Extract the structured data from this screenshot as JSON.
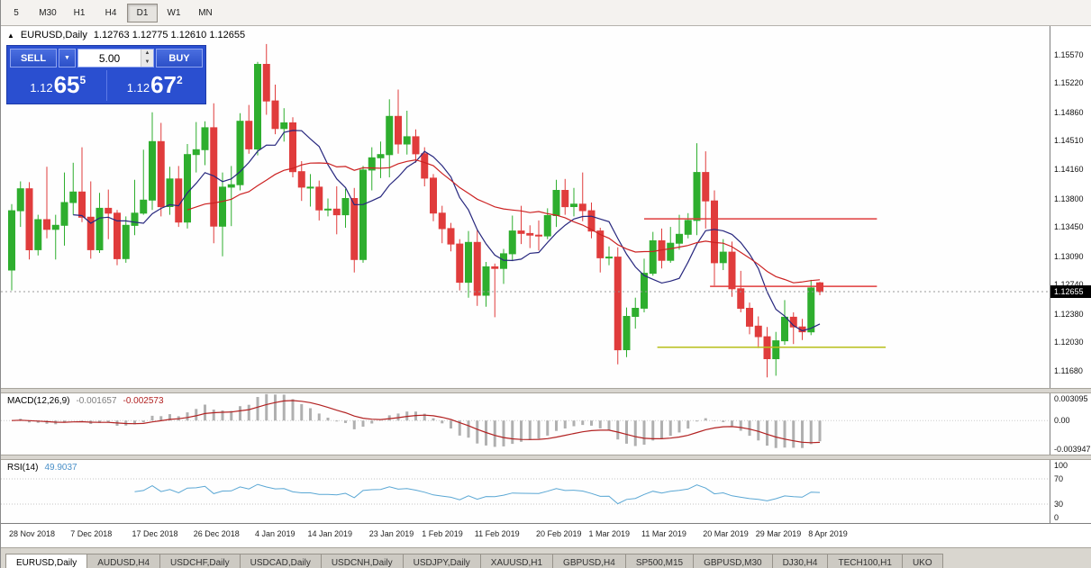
{
  "icons": {
    "collapse": "▲",
    "dropdown": "▼",
    "spin_up": "▲",
    "spin_down": "▼"
  },
  "toolbar": {
    "timeframes": [
      "5",
      "M30",
      "H1",
      "H4",
      "D1",
      "W1",
      "MN"
    ],
    "active": "D1"
  },
  "chart": {
    "symbol_title": "EURUSD,Daily",
    "ohlc_line": "1.12763 1.12775 1.12610 1.12655",
    "current_price_tag": "1.12655",
    "price_axis_labels": [
      "1.15570",
      "1.15220",
      "1.14860",
      "1.14510",
      "1.14160",
      "1.13800",
      "1.13450",
      "1.13090",
      "1.12740",
      "1.12380",
      "1.12030",
      "1.11680"
    ],
    "date_axis_labels": [
      {
        "label": "28 Nov 2018",
        "idx": 0
      },
      {
        "label": "7 Dec 2018",
        "idx": 7
      },
      {
        "label": "17 Dec 2018",
        "idx": 14
      },
      {
        "label": "26 Dec 2018",
        "idx": 21
      },
      {
        "label": "4 Jan 2019",
        "idx": 28
      },
      {
        "label": "14 Jan 2019",
        "idx": 34
      },
      {
        "label": "23 Jan 2019",
        "idx": 41
      },
      {
        "label": "1 Feb 2019",
        "idx": 47
      },
      {
        "label": "11 Feb 2019",
        "idx": 53
      },
      {
        "label": "20 Feb 2019",
        "idx": 60
      },
      {
        "label": "1 Mar 2019",
        "idx": 66
      },
      {
        "label": "11 Mar 2019",
        "idx": 72
      },
      {
        "label": "20 Mar 2019",
        "idx": 79
      },
      {
        "label": "29 Mar 2019",
        "idx": 85
      },
      {
        "label": "8 Apr 2019",
        "idx": 91
      }
    ]
  },
  "trade_panel": {
    "sell_label": "SELL",
    "buy_label": "BUY",
    "lot_value": "5.00",
    "sell_price": {
      "prefix": "1.12",
      "big": "65",
      "sup": "5"
    },
    "buy_price": {
      "prefix": "1.12",
      "big": "67",
      "sup": "2"
    }
  },
  "macd_panel": {
    "label": "MACD(12,26,9)",
    "main_value": "-0.001657",
    "signal_value": "-0.002573",
    "axis_labels": [
      "0.003095",
      "0.00",
      "-0.003947"
    ],
    "fast": 12,
    "slow": 26,
    "signal": 9,
    "scale": {
      "max": 0.0032,
      "min": -0.004
    },
    "histogram_color": "#b0b0b0",
    "signal_color": "#b22222"
  },
  "rsi_panel": {
    "label": "RSI(14)",
    "value": "49.9037",
    "axis_labels": [
      "100",
      "70",
      "30",
      "0"
    ],
    "levels": [
      70,
      30
    ],
    "period": 14,
    "line_color": "#5aa7d4"
  },
  "tabs": [
    {
      "label": "EURUSD,Daily",
      "active": true
    },
    {
      "label": "AUDUSD,H4"
    },
    {
      "label": "USDCHF,Daily"
    },
    {
      "label": "USDCAD,Daily"
    },
    {
      "label": "USDCNH,Daily"
    },
    {
      "label": "USDJPY,Daily"
    },
    {
      "label": "XAUUSD,H1"
    },
    {
      "label": "GBPUSD,H4"
    },
    {
      "label": "SP500,M15"
    },
    {
      "label": "GBPUSD,M30"
    },
    {
      "label": "DJ30,H4"
    },
    {
      "label": "TECH100,H1"
    },
    {
      "label": "UKO"
    }
  ],
  "chart_data": {
    "type": "candlestick",
    "symbol": "EURUSD",
    "timeframe": "Daily",
    "title": "EURUSD,Daily",
    "current_price": 1.12655,
    "scale": {
      "price_top": 1.1592,
      "price_bottom": 1.1147
    },
    "colors": {
      "up": "#2eae2e",
      "down": "#e03c3c",
      "ma_fast": "#27277e",
      "ma_slow": "#cc2222"
    },
    "overlays": [
      {
        "type": "sma",
        "period": 8,
        "color_key": "ma_fast"
      },
      {
        "type": "sma",
        "period": 21,
        "color_key": "ma_slow"
      }
    ],
    "lines": [
      {
        "type": "hline",
        "price": 1.1355,
        "color": "#e03c3c",
        "from_idx": 72,
        "to_idx": 98.5
      },
      {
        "type": "hline",
        "price": 1.1272,
        "color": "#e03c3c",
        "from_idx": 79.5,
        "to_idx": 98.5
      },
      {
        "type": "hline",
        "price": 1.1197,
        "color": "#b8bf1a",
        "from_idx": 73.5,
        "to_idx": 99.5
      }
    ],
    "candles": [
      [
        1.1292,
        1.1373,
        1.1267,
        1.1365
      ],
      [
        1.1365,
        1.1401,
        1.1345,
        1.1392
      ],
      [
        1.1392,
        1.14,
        1.1305,
        1.1317
      ],
      [
        1.1317,
        1.136,
        1.131,
        1.1354
      ],
      [
        1.1354,
        1.1419,
        1.1331,
        1.1342
      ],
      [
        1.1342,
        1.136,
        1.1305,
        1.1347
      ],
      [
        1.1347,
        1.1412,
        1.1322,
        1.1375
      ],
      [
        1.1375,
        1.1424,
        1.136,
        1.1388
      ],
      [
        1.1388,
        1.1443,
        1.1351,
        1.1357
      ],
      [
        1.1357,
        1.1401,
        1.1306,
        1.1317
      ],
      [
        1.1317,
        1.1387,
        1.1313,
        1.1368
      ],
      [
        1.1368,
        1.1391,
        1.133,
        1.1362
      ],
      [
        1.1362,
        1.1366,
        1.1298,
        1.1306
      ],
      [
        1.1306,
        1.1358,
        1.1301,
        1.1347
      ],
      [
        1.1347,
        1.1403,
        1.1335,
        1.1362
      ],
      [
        1.1362,
        1.144,
        1.136,
        1.1378
      ],
      [
        1.1378,
        1.1486,
        1.1366,
        1.145
      ],
      [
        1.145,
        1.1473,
        1.1358,
        1.137
      ],
      [
        1.137,
        1.1419,
        1.136,
        1.1404
      ],
      [
        1.1404,
        1.142,
        1.1345,
        1.1351
      ],
      [
        1.1351,
        1.1447,
        1.1343,
        1.1434
      ],
      [
        1.1434,
        1.1474,
        1.1412,
        1.144
      ],
      [
        1.144,
        1.1475,
        1.1421,
        1.1467
      ],
      [
        1.1467,
        1.1497,
        1.1325,
        1.1346
      ],
      [
        1.1346,
        1.1412,
        1.1309,
        1.1394
      ],
      [
        1.1394,
        1.142,
        1.1346,
        1.1397
      ],
      [
        1.1397,
        1.1485,
        1.139,
        1.1475
      ],
      [
        1.1475,
        1.1495,
        1.1435,
        1.1441
      ],
      [
        1.1441,
        1.1548,
        1.1433,
        1.1545
      ],
      [
        1.1545,
        1.157,
        1.1483,
        1.15
      ],
      [
        1.15,
        1.152,
        1.1459,
        1.1466
      ],
      [
        1.1466,
        1.1491,
        1.145,
        1.1473
      ],
      [
        1.1473,
        1.148,
        1.1406,
        1.1413
      ],
      [
        1.1413,
        1.1426,
        1.1377,
        1.1394
      ],
      [
        1.1394,
        1.141,
        1.137,
        1.1394
      ],
      [
        1.1394,
        1.1402,
        1.1353,
        1.1366
      ],
      [
        1.1366,
        1.138,
        1.1358,
        1.1367
      ],
      [
        1.1367,
        1.1395,
        1.1336,
        1.136
      ],
      [
        1.136,
        1.1392,
        1.1344,
        1.138
      ],
      [
        1.138,
        1.1393,
        1.1289,
        1.1305
      ],
      [
        1.1305,
        1.142,
        1.1301,
        1.1415
      ],
      [
        1.1415,
        1.1443,
        1.139,
        1.143
      ],
      [
        1.143,
        1.145,
        1.1405,
        1.1434
      ],
      [
        1.1434,
        1.1502,
        1.1406,
        1.1481
      ],
      [
        1.1481,
        1.1514,
        1.1435,
        1.1447
      ],
      [
        1.1447,
        1.1488,
        1.1434,
        1.1456
      ],
      [
        1.1456,
        1.1465,
        1.1424,
        1.1435
      ],
      [
        1.1435,
        1.1443,
        1.1395,
        1.1405
      ],
      [
        1.1405,
        1.141,
        1.1352,
        1.1362
      ],
      [
        1.1362,
        1.1371,
        1.1325,
        1.1343
      ],
      [
        1.1343,
        1.135,
        1.1315,
        1.1324
      ],
      [
        1.1324,
        1.133,
        1.1267,
        1.1277
      ],
      [
        1.1277,
        1.134,
        1.1258,
        1.1326
      ],
      [
        1.1326,
        1.1341,
        1.1248,
        1.1261
      ],
      [
        1.1261,
        1.1302,
        1.1247,
        1.1296
      ],
      [
        1.1296,
        1.13,
        1.1234,
        1.1294
      ],
      [
        1.1294,
        1.1318,
        1.1275,
        1.1312
      ],
      [
        1.1312,
        1.1359,
        1.1303,
        1.134
      ],
      [
        1.134,
        1.1371,
        1.1324,
        1.1337
      ],
      [
        1.1337,
        1.1347,
        1.1319,
        1.1335
      ],
      [
        1.1335,
        1.1353,
        1.1316,
        1.1334
      ],
      [
        1.1334,
        1.1368,
        1.133,
        1.1359
      ],
      [
        1.1359,
        1.1403,
        1.1345,
        1.139
      ],
      [
        1.139,
        1.1404,
        1.136,
        1.137
      ],
      [
        1.137,
        1.1393,
        1.1358,
        1.1373
      ],
      [
        1.1373,
        1.1412,
        1.1352,
        1.1365
      ],
      [
        1.1365,
        1.1375,
        1.1331,
        1.134
      ],
      [
        1.134,
        1.1344,
        1.1289,
        1.1307
      ],
      [
        1.1307,
        1.1321,
        1.1298,
        1.1308
      ],
      [
        1.1308,
        1.132,
        1.1176,
        1.1194
      ],
      [
        1.1194,
        1.1246,
        1.1185,
        1.1235
      ],
      [
        1.1235,
        1.1258,
        1.122,
        1.1245
      ],
      [
        1.1245,
        1.1306,
        1.124,
        1.1288
      ],
      [
        1.1288,
        1.1339,
        1.1285,
        1.1328
      ],
      [
        1.1328,
        1.1343,
        1.1294,
        1.1304
      ],
      [
        1.1304,
        1.1345,
        1.1301,
        1.1325
      ],
      [
        1.1325,
        1.136,
        1.1317,
        1.1336
      ],
      [
        1.1336,
        1.1362,
        1.1331,
        1.1353
      ],
      [
        1.1353,
        1.1448,
        1.1335,
        1.1412
      ],
      [
        1.1412,
        1.1438,
        1.1343,
        1.1377
      ],
      [
        1.1377,
        1.139,
        1.1273,
        1.1301
      ],
      [
        1.1301,
        1.133,
        1.1292,
        1.1314
      ],
      [
        1.1314,
        1.1327,
        1.1259,
        1.1269
      ],
      [
        1.1269,
        1.1291,
        1.124,
        1.1245
      ],
      [
        1.1245,
        1.1252,
        1.1213,
        1.1223
      ],
      [
        1.1223,
        1.1235,
        1.1196,
        1.121
      ],
      [
        1.121,
        1.1222,
        1.116,
        1.1183
      ],
      [
        1.1183,
        1.1216,
        1.1162,
        1.1205
      ],
      [
        1.1205,
        1.1255,
        1.12,
        1.1234
      ],
      [
        1.1234,
        1.124,
        1.1201,
        1.1222
      ],
      [
        1.1222,
        1.1232,
        1.1206,
        1.1216
      ],
      [
        1.1216,
        1.128,
        1.1212,
        1.127
      ],
      [
        1.12763,
        1.12775,
        1.1261,
        1.12655
      ]
    ]
  }
}
